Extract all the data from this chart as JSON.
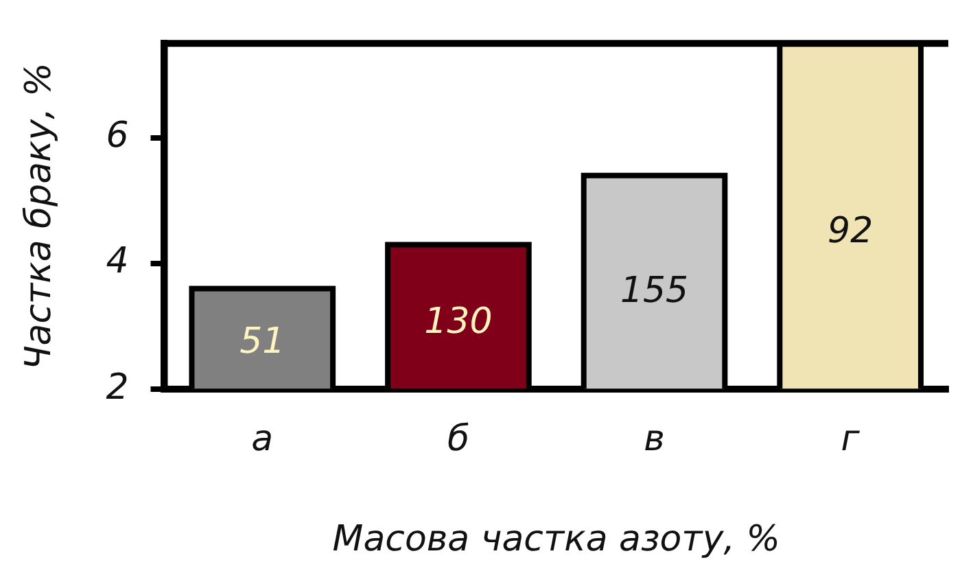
{
  "chart_data": {
    "type": "bar",
    "xlabel": "Масова частка азоту, %",
    "ylabel": "Частка браку, %",
    "categories": [
      "а",
      "б",
      "в",
      "г"
    ],
    "values": [
      3.6,
      4.3,
      5.4,
      7.5
    ],
    "colors": [
      "#808080",
      "#80001a",
      "#c8c8c8",
      "#f0e4b4"
    ],
    "annotations": [
      "51",
      "130",
      "155",
      "92"
    ],
    "ylim": [
      2,
      7.5
    ],
    "yticks": [
      2,
      4,
      6
    ],
    "grid": false,
    "legend": false
  }
}
